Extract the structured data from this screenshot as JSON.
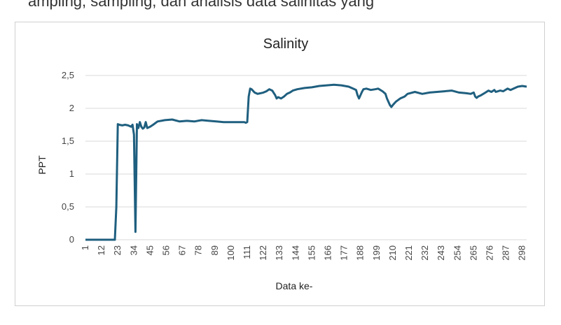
{
  "header_fragment": "ampling, sampling, dan analisis data salinitas yang",
  "chart_data": {
    "type": "line",
    "title": "Salinity",
    "xlabel": "Data ke-",
    "ylabel": "PPT",
    "ylim": [
      0,
      2.5
    ],
    "yticks": [
      "0",
      "0,5",
      "1",
      "1,5",
      "2",
      "2,5"
    ],
    "xticks": [
      "1",
      "12",
      "23",
      "34",
      "45",
      "56",
      "67",
      "78",
      "89",
      "100",
      "111",
      "122",
      "133",
      "144",
      "155",
      "166",
      "177",
      "188",
      "199",
      "210",
      "221",
      "232",
      "243",
      "254",
      "265",
      "276",
      "287",
      "298"
    ],
    "grid": true,
    "legend": "none",
    "color": "#1f5f7f",
    "series": [
      {
        "x": [
          1,
          20,
          21,
          22,
          23,
          24,
          26,
          28,
          30,
          32,
          33,
          34,
          35,
          36,
          37,
          38,
          39,
          40,
          41,
          42,
          43,
          45,
          47,
          50,
          55,
          60,
          65,
          70,
          75,
          80,
          85,
          90,
          95,
          100,
          105,
          109,
          110,
          111,
          112,
          113,
          114,
          116,
          118,
          120,
          122,
          124,
          126,
          128,
          130,
          131,
          132,
          134,
          136,
          138,
          140,
          142,
          145,
          150,
          155,
          160,
          165,
          170,
          175,
          180,
          183,
          185,
          186,
          187,
          188,
          189,
          190,
          192,
          195,
          198,
          200,
          203,
          205,
          206,
          207,
          208,
          209,
          210,
          212,
          215,
          218,
          220,
          225,
          230,
          235,
          240,
          245,
          250,
          255,
          260,
          263,
          265,
          266,
          267,
          268,
          270,
          273,
          275,
          277,
          279,
          280,
          283,
          285,
          288,
          290,
          293,
          295,
          298,
          301
        ],
        "y": [
          0,
          0,
          0,
          0.5,
          1.76,
          1.75,
          1.74,
          1.75,
          1.74,
          1.72,
          1.75,
          1.6,
          0.12,
          1.76,
          1.7,
          1.79,
          1.72,
          1.69,
          1.71,
          1.79,
          1.7,
          1.72,
          1.75,
          1.8,
          1.82,
          1.83,
          1.8,
          1.81,
          1.8,
          1.82,
          1.81,
          1.8,
          1.79,
          1.79,
          1.79,
          1.79,
          1.78,
          1.79,
          2.18,
          2.3,
          2.29,
          2.24,
          2.22,
          2.23,
          2.24,
          2.26,
          2.29,
          2.27,
          2.2,
          2.15,
          2.17,
          2.15,
          2.18,
          2.22,
          2.24,
          2.27,
          2.29,
          2.31,
          2.32,
          2.34,
          2.35,
          2.36,
          2.35,
          2.33,
          2.3,
          2.28,
          2.2,
          2.15,
          2.2,
          2.25,
          2.29,
          2.3,
          2.28,
          2.29,
          2.3,
          2.26,
          2.22,
          2.15,
          2.1,
          2.05,
          2.02,
          2.05,
          2.1,
          2.15,
          2.18,
          2.22,
          2.25,
          2.22,
          2.24,
          2.25,
          2.26,
          2.27,
          2.24,
          2.23,
          2.22,
          2.24,
          2.18,
          2.16,
          2.18,
          2.2,
          2.24,
          2.27,
          2.25,
          2.28,
          2.25,
          2.27,
          2.26,
          2.3,
          2.28,
          2.31,
          2.33,
          2.34,
          2.33
        ]
      }
    ]
  }
}
